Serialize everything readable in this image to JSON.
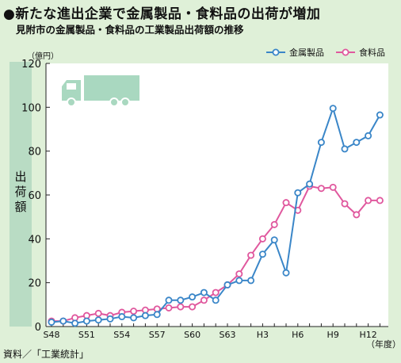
{
  "title": "●新たな進出企業で金属製品・食料品の出荷が増加",
  "subtitle": "見附市の金属製品・食料品の工業製品出荷額の推移",
  "source": "資料／「工業統計」",
  "colors": {
    "background": "#dff0d8",
    "plot_bg": "#ffffff",
    "ylabel_band": "#b9dcc4",
    "metal": "#3a86c8",
    "food": "#e0589e",
    "truck": "#a9d8c0"
  },
  "chart_data": {
    "type": "line",
    "title": "見附市の金属製品・食料品の工業製品出荷額の推移",
    "ylabel": "出荷額",
    "yunit": "（億円）",
    "xunit": "（年度）",
    "ylim": [
      0,
      120
    ],
    "yticks": [
      0,
      20,
      40,
      60,
      80,
      100,
      120
    ],
    "grid": false,
    "legend_position": "top-right",
    "x": [
      "S48",
      "S49",
      "S50",
      "S51",
      "S52",
      "S53",
      "S54",
      "S55",
      "S56",
      "S57",
      "S58",
      "S59",
      "S60",
      "S61",
      "S62",
      "S63",
      "H1",
      "H2",
      "H3",
      "H4",
      "H5",
      "H6",
      "H7",
      "H8",
      "H9",
      "H10",
      "H11",
      "H12",
      "H13"
    ],
    "xtick_labels": [
      "S48",
      "S51",
      "S54",
      "S57",
      "S60",
      "S63",
      "H3",
      "H6",
      "H9",
      "H12"
    ],
    "series": [
      {
        "name": "金属製品",
        "values": [
          2,
          2.5,
          1.5,
          2.5,
          3,
          3.5,
          4.5,
          4,
          5,
          5.5,
          12,
          12,
          13.5,
          15.5,
          12,
          19,
          21,
          21,
          33,
          39.5,
          24.5,
          61,
          65,
          84,
          99.5,
          81,
          84,
          87,
          96.5
        ]
      },
      {
        "name": "食料品",
        "values": [
          2.5,
          2.5,
          4,
          5,
          6,
          5,
          6.5,
          7,
          7.5,
          8,
          8.5,
          9,
          9,
          12,
          15.5,
          19,
          24,
          32.5,
          40,
          46.5,
          56.5,
          53,
          64,
          63,
          63.5,
          56,
          51,
          57.5,
          57.5
        ]
      }
    ]
  }
}
